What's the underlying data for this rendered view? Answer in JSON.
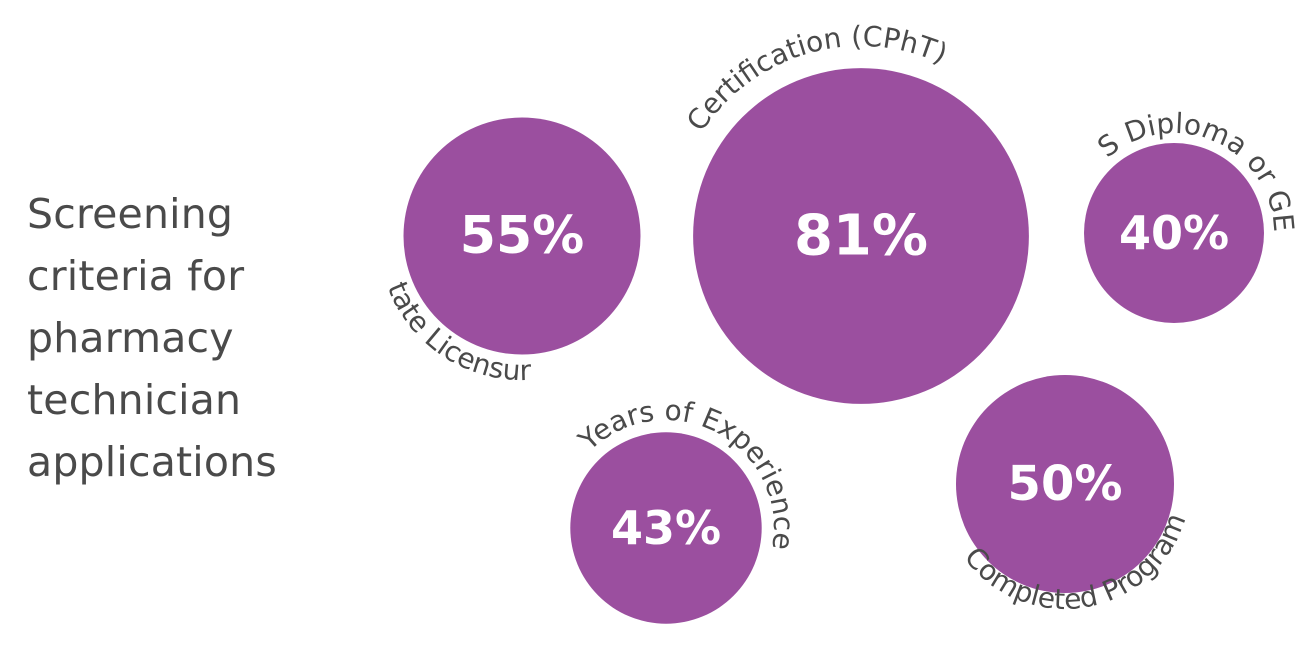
{
  "title_lines": [
    "Screening",
    "criteria for",
    "pharmacy",
    "technician",
    "applications"
  ],
  "colors": {
    "bubble": "#9b4f9f",
    "value_text": "#ffffff",
    "label_text": "#4a4a4a",
    "heading_text": "#4a4a4a"
  },
  "chart_data": {
    "type": "bubble",
    "unit": "%",
    "items": [
      {
        "label": "State Licensure",
        "value": 55
      },
      {
        "label": "Certification (CPhT)",
        "value": 81
      },
      {
        "label": "HS Diploma or GED",
        "value": 40
      },
      {
        "label": "Years of Experience",
        "value": 43
      },
      {
        "label": "Completed Program",
        "value": 50
      }
    ]
  }
}
